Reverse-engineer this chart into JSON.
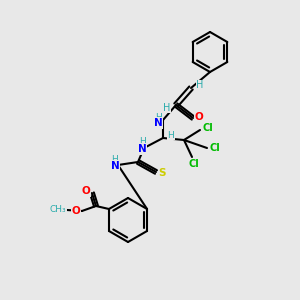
{
  "background_color": "#e8e8e8",
  "bond_color": "#000000",
  "atom_colors": {
    "C": "#000000",
    "H": "#2aabab",
    "N": "#0000ff",
    "O": "#ff0000",
    "S": "#cccc00",
    "Cl": "#00bb00"
  },
  "figsize": [
    3.0,
    3.0
  ],
  "dpi": 100
}
